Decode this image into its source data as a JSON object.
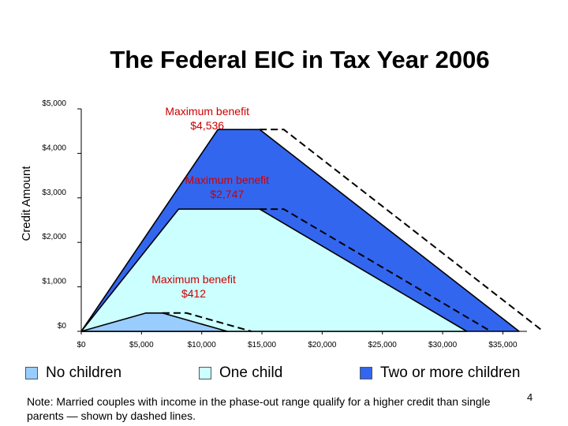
{
  "chart_data": {
    "type": "area",
    "title": "The Federal EIC in Tax Year 2006",
    "ylabel": "Credit Amount",
    "xlabel": "",
    "xlim": [
      0,
      37000
    ],
    "ylim": [
      0,
      5000
    ],
    "x_ticks": [
      0,
      5000,
      10000,
      15000,
      20000,
      25000,
      30000,
      35000
    ],
    "x_tick_labels": [
      "$0",
      "$5,000",
      "$10,000",
      "$15,000",
      "$20,000",
      "$25,000",
      "$30,000",
      "$35,000"
    ],
    "y_ticks": [
      0,
      1000,
      2000,
      3000,
      4000,
      5000
    ],
    "y_tick_labels": [
      "$0",
      "$1,000",
      "$2,000",
      "$3,000",
      "$4,000",
      "$5,000"
    ],
    "series": [
      {
        "name": "Two or more children",
        "color": "#3366ee",
        "points": [
          [
            0,
            0
          ],
          [
            11340,
            4536
          ],
          [
            14810,
            4536
          ],
          [
            36348,
            0
          ]
        ],
        "dashed_points": [
          [
            14810,
            4536
          ],
          [
            16810,
            4536
          ],
          [
            38348,
            0
          ]
        ]
      },
      {
        "name": "One child",
        "color": "#ccffff",
        "points": [
          [
            0,
            0
          ],
          [
            8080,
            2747
          ],
          [
            14810,
            2747
          ],
          [
            32001,
            0
          ]
        ],
        "dashed_points": [
          [
            14810,
            2747
          ],
          [
            16810,
            2747
          ],
          [
            34001,
            0
          ]
        ]
      },
      {
        "name": "No children",
        "color": "#99ccff",
        "points": [
          [
            0,
            0
          ],
          [
            5380,
            412
          ],
          [
            6740,
            412
          ],
          [
            12120,
            0
          ]
        ],
        "dashed_points": [
          [
            6740,
            412
          ],
          [
            8740,
            412
          ],
          [
            14120,
            0
          ]
        ]
      }
    ],
    "annotations": [
      {
        "line1": "Maximum benefit",
        "line2": "$4,536"
      },
      {
        "line1": "Maximum benefit",
        "line2": "$2,747"
      },
      {
        "line1": "Maximum benefit",
        "line2": "$412"
      }
    ],
    "legend": {
      "placement": "bottom",
      "items": [
        {
          "label": "No children",
          "color": "#99ccff"
        },
        {
          "label": "One child",
          "color": "#ccffff"
        },
        {
          "label": "Two or more children",
          "color": "#3366ee"
        }
      ]
    },
    "annotation_color": "#cc0000",
    "grid": false
  },
  "note": "Note: Married couples with income in the phase-out range qualify for a higher credit than single parents — shown by dashed lines.",
  "page_number": "4"
}
